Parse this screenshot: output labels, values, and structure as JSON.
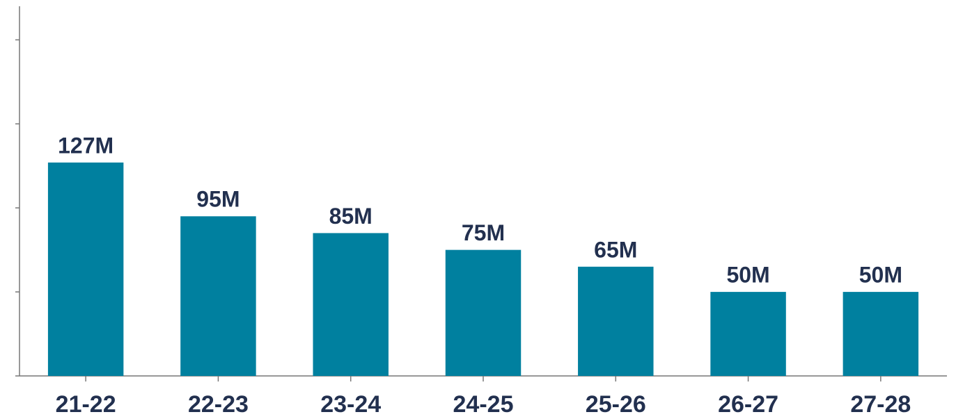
{
  "chart_data": {
    "type": "bar",
    "categories": [
      "21-22",
      "22-23",
      "23-24",
      "24-25",
      "25-26",
      "26-27",
      "27-28"
    ],
    "values": [
      127,
      95,
      85,
      75,
      65,
      50,
      50
    ],
    "value_labels": [
      "127M",
      "95M",
      "85M",
      "75M",
      "65M",
      "50M",
      "50M"
    ],
    "color": "#00809f",
    "ylim": [
      0,
      220
    ],
    "yticks": [
      0,
      50,
      100,
      150,
      200
    ],
    "grid": false
  }
}
